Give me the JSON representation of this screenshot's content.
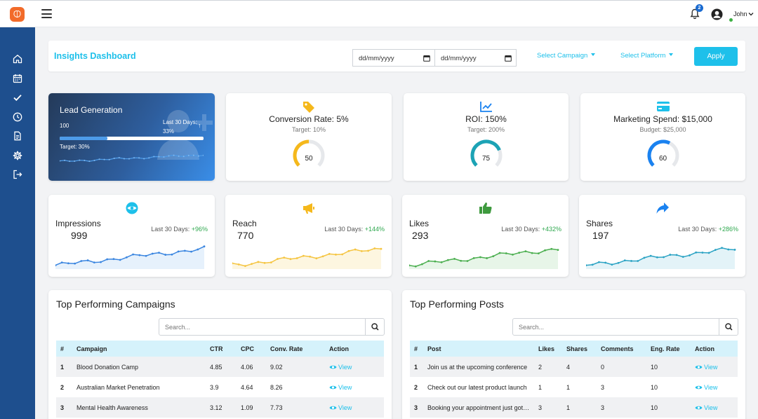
{
  "topbar": {
    "username": "John",
    "notification_count": "2"
  },
  "sidebar": {
    "items": [
      "home-icon",
      "calendar-icon",
      "check-icon",
      "clock-icon",
      "document-icon",
      "gear-icon",
      "logout-icon"
    ]
  },
  "filter": {
    "title": "Insights Dashboard",
    "date_from_placeholder": "dd/mm/yyyy",
    "date_to_placeholder": "dd/mm/yyyy",
    "select_campaign": "Select Campaign",
    "select_platform": "Select Platform",
    "apply": "Apply"
  },
  "lead": {
    "title": "Lead Generation",
    "value": "100",
    "last30_label": "Last 30 Days:",
    "last30_value": "33%",
    "target": "Target: 30%",
    "progress": 0.33
  },
  "kpis": [
    {
      "title": "Conversion Rate: 5%",
      "sub": "Target: 10%",
      "value": "50",
      "pct": 0.5,
      "color": "#f5b81b",
      "icon": "tag-icon"
    },
    {
      "title": "ROI: 150%",
      "sub": "Target: 200%",
      "value": "75",
      "pct": 0.75,
      "color": "#1ca3b5",
      "icon": "chart-line-icon"
    },
    {
      "title": "Marketing Spend: $15,000",
      "sub": "Budget: $25,000",
      "value": "60",
      "pct": 0.6,
      "color": "#1a82f0",
      "icon": "credit-card-icon"
    }
  ],
  "stats": [
    {
      "title": "Impressions",
      "value": "999",
      "last_label": "Last 30 Days: ",
      "change": "+96%",
      "color": "#3b86e0",
      "fill": "#e6f1fc",
      "icon": "eye-icon"
    },
    {
      "title": "Reach",
      "value": "770",
      "last_label": "Last 30 Days: ",
      "change": "+144%",
      "color": "#f5c542",
      "fill": "#fdf6e0",
      "icon": "megaphone-icon"
    },
    {
      "title": "Likes",
      "value": "293",
      "last_label": "Last 30 Days: ",
      "change": "+432%",
      "color": "#4caf50",
      "fill": "#e7f5e8",
      "icon": "thumbs-up-icon"
    },
    {
      "title": "Shares",
      "value": "197",
      "last_label": "Last 30 Days: ",
      "change": "+286%",
      "color": "#2ba3c4",
      "fill": "#e3f3f8",
      "icon": "share-icon"
    }
  ],
  "campaigns": {
    "title": "Top Performing Campaigns",
    "search_placeholder": "Search...",
    "columns": [
      "#",
      "Campaign",
      "CTR",
      "CPC",
      "Conv. Rate",
      "Action"
    ],
    "rows": [
      [
        "1",
        "Blood Donation Camp",
        "4.85",
        "4.06",
        "9.02",
        "View"
      ],
      [
        "2",
        "Australian Market Penetration",
        "3.9",
        "4.64",
        "8.26",
        "View"
      ],
      [
        "3",
        "Mental Health Awareness",
        "3.12",
        "1.09",
        "7.73",
        "View"
      ]
    ]
  },
  "posts": {
    "title": "Top Performing Posts",
    "search_placeholder": "Search...",
    "columns": [
      "#",
      "Post",
      "Likes",
      "Shares",
      "Comments",
      "Eng. Rate",
      "Action"
    ],
    "rows": [
      [
        "1",
        "Join us at the upcoming conference",
        "2",
        "4",
        "0",
        "10",
        "View"
      ],
      [
        "2",
        "Check out our latest product launch",
        "1",
        "1",
        "3",
        "10",
        "View"
      ],
      [
        "3",
        "Booking your appointment just got easier",
        "3",
        "1",
        "3",
        "10",
        "View"
      ]
    ]
  }
}
